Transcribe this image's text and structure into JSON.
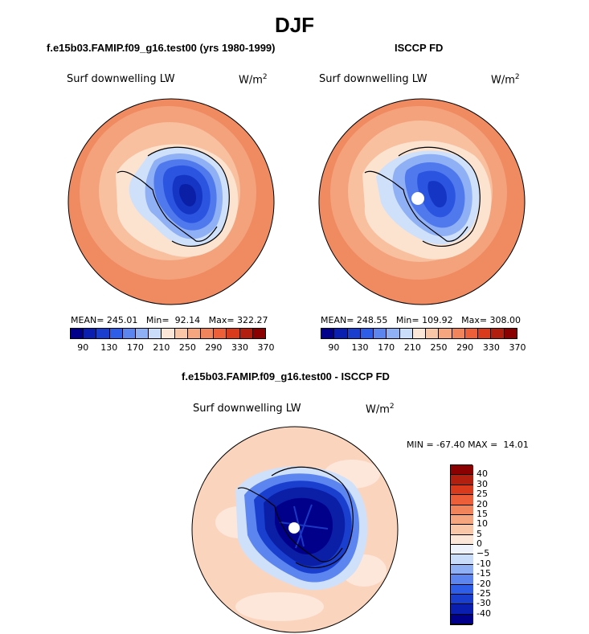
{
  "title": "DJF",
  "panels": [
    {
      "case": "f.e15b03.FAMIP.f09_g16.test00 (yrs 1980-1999)",
      "variable": "Surf downwelling LW",
      "units": "W/m",
      "units_exp": "2",
      "stats": "MEAN= 245.01   Min=  92.14   Max= 322.27"
    },
    {
      "case": "ISCCP FD",
      "variable": "Surf downwelling LW",
      "units": "W/m",
      "units_exp": "2",
      "stats": "MEAN= 248.55   Min= 109.92   Max= 308.00"
    }
  ],
  "diff": {
    "case": "f.e15b03.FAMIP.f09_g16.test00 - ISCCP FD",
    "variable": "Surf downwelling LW",
    "units": "W/m",
    "units_exp": "2",
    "stats": "MIN = -67.40 MAX =  14.01"
  },
  "colorbar_abs": {
    "colors": [
      "#00008b",
      "#0a1fb0",
      "#1a3fcf",
      "#2e5ee8",
      "#5c85f0",
      "#8fb0f5",
      "#c9dcfa",
      "#fbe6d8",
      "#f9c7a8",
      "#f6a67f",
      "#f2845c",
      "#ec5f38",
      "#d93a1c",
      "#b31f0f",
      "#8b0000"
    ],
    "ticks": [
      "90",
      "130",
      "170",
      "210",
      "250",
      "290",
      "330",
      "370"
    ]
  },
  "colorbar_diff": {
    "colors": [
      "#00008b",
      "#0a1fb0",
      "#1a3fcf",
      "#2e5ee8",
      "#5c85f0",
      "#8fb0f5",
      "#c9dcfa",
      "#eef3fb",
      "#fbe6d8",
      "#f9c7a8",
      "#f6a67f",
      "#f2845c",
      "#ec5f38",
      "#d93a1c",
      "#b31f0f",
      "#8b0000"
    ],
    "ticks": [
      "-40",
      "-30",
      "-25",
      "-20",
      "-15",
      "-10",
      "−5",
      "0",
      "5",
      "10",
      "15",
      "20",
      "25",
      "30",
      "40"
    ]
  },
  "map_colors": {
    "ocean_far": "#f08a60",
    "ocean_mid": "#f4a27c",
    "ocean_near": "#f8c09f",
    "coast_light": "#fbe3d0",
    "ice_edge": "#cfe0fa",
    "ice1": "#8fb0f5",
    "ice2": "#4f79ec",
    "ice3": "#2b55e0",
    "ice4": "#1536c4",
    "ice5": "#0a1fa6",
    "diff_ocean": "#fbd4bd",
    "diff_ocean_light": "#fde7da",
    "diff_land1": "#1a3fcf",
    "diff_land2": "#0a1fa6",
    "diff_land3": "#00008b"
  }
}
